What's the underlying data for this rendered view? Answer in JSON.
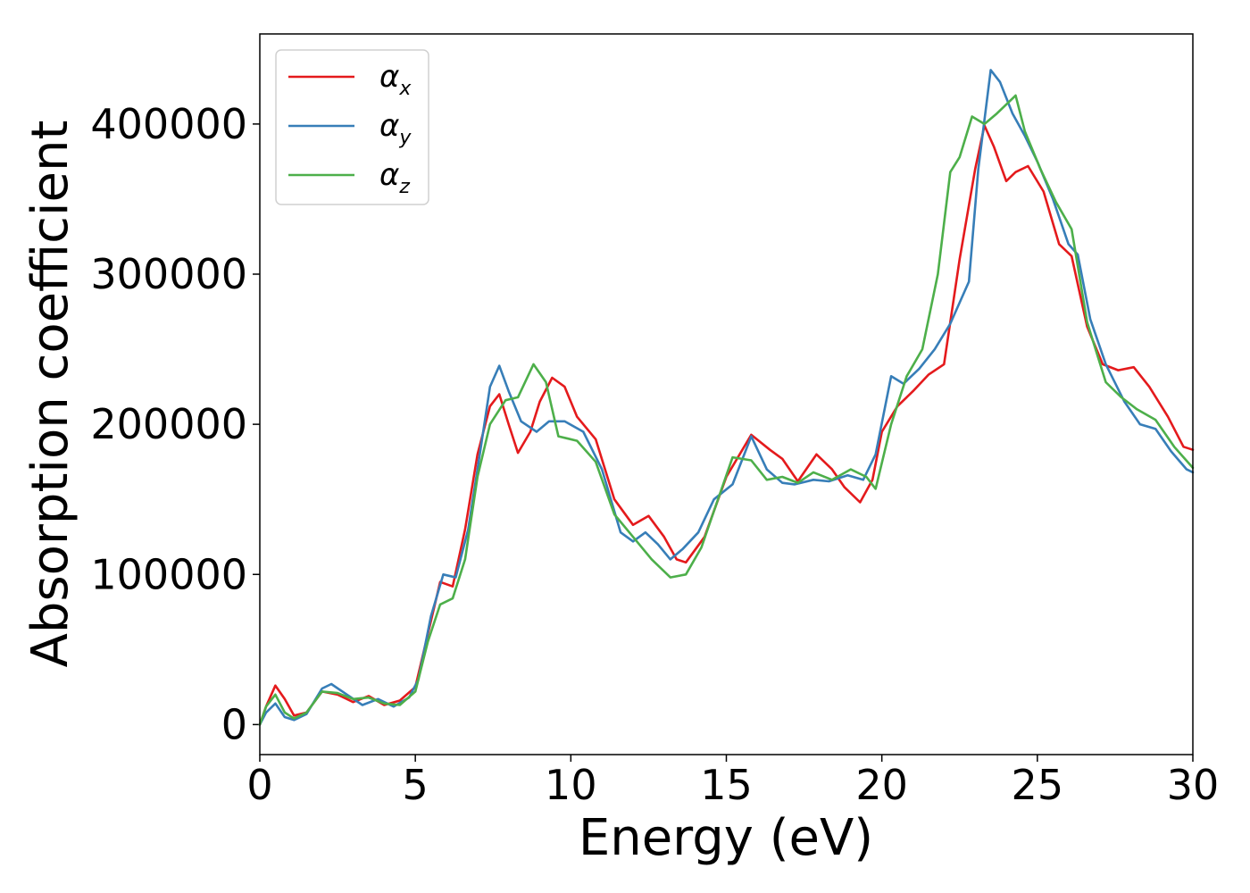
{
  "chart_data": {
    "type": "line",
    "xlabel": "Energy (eV)",
    "ylabel": "Absorption coefficient",
    "xlim": [
      0,
      30
    ],
    "ylim": [
      -20000,
      460000
    ],
    "xticks": [
      0,
      5,
      10,
      15,
      20,
      25,
      30
    ],
    "yticks": [
      0,
      100000,
      200000,
      300000,
      400000
    ],
    "grid": false,
    "legend_position": "top-left",
    "series": [
      {
        "name": "α",
        "sub": "x",
        "color": "#e41a1c",
        "points": [
          [
            0,
            0
          ],
          [
            0.2,
            12000
          ],
          [
            0.5,
            26000
          ],
          [
            0.8,
            17000
          ],
          [
            1.1,
            6000
          ],
          [
            1.5,
            8000
          ],
          [
            2.0,
            22000
          ],
          [
            2.5,
            20000
          ],
          [
            3.0,
            15000
          ],
          [
            3.5,
            19000
          ],
          [
            4.0,
            13000
          ],
          [
            4.5,
            16000
          ],
          [
            5.0,
            25000
          ],
          [
            5.4,
            60000
          ],
          [
            5.8,
            95000
          ],
          [
            6.2,
            92000
          ],
          [
            6.6,
            130000
          ],
          [
            7.0,
            180000
          ],
          [
            7.4,
            212000
          ],
          [
            7.7,
            220000
          ],
          [
            8.0,
            200000
          ],
          [
            8.3,
            181000
          ],
          [
            8.7,
            195000
          ],
          [
            9.0,
            215000
          ],
          [
            9.4,
            231000
          ],
          [
            9.8,
            225000
          ],
          [
            10.2,
            205000
          ],
          [
            10.8,
            190000
          ],
          [
            11.4,
            150000
          ],
          [
            12.0,
            133000
          ],
          [
            12.5,
            139000
          ],
          [
            13.0,
            125000
          ],
          [
            13.4,
            110000
          ],
          [
            13.7,
            108000
          ],
          [
            14.3,
            125000
          ],
          [
            15.0,
            165000
          ],
          [
            15.8,
            193000
          ],
          [
            16.4,
            183000
          ],
          [
            16.8,
            177000
          ],
          [
            17.3,
            162000
          ],
          [
            17.9,
            180000
          ],
          [
            18.4,
            170000
          ],
          [
            18.8,
            158000
          ],
          [
            19.3,
            148000
          ],
          [
            19.7,
            163000
          ],
          [
            20.0,
            195000
          ],
          [
            20.5,
            212000
          ],
          [
            21.0,
            222000
          ],
          [
            21.5,
            233000
          ],
          [
            22.0,
            240000
          ],
          [
            22.5,
            310000
          ],
          [
            23.0,
            370000
          ],
          [
            23.3,
            399000
          ],
          [
            23.6,
            385000
          ],
          [
            24.0,
            362000
          ],
          [
            24.3,
            368000
          ],
          [
            24.7,
            372000
          ],
          [
            25.2,
            355000
          ],
          [
            25.7,
            320000
          ],
          [
            26.1,
            312000
          ],
          [
            26.6,
            265000
          ],
          [
            27.1,
            240000
          ],
          [
            27.6,
            236000
          ],
          [
            28.1,
            238000
          ],
          [
            28.6,
            225000
          ],
          [
            29.2,
            205000
          ],
          [
            29.7,
            185000
          ],
          [
            30,
            183000
          ]
        ]
      },
      {
        "name": "α",
        "sub": "y",
        "color": "#377eb8",
        "points": [
          [
            0,
            0
          ],
          [
            0.2,
            8000
          ],
          [
            0.5,
            14000
          ],
          [
            0.8,
            5000
          ],
          [
            1.1,
            3000
          ],
          [
            1.5,
            7000
          ],
          [
            2.0,
            24000
          ],
          [
            2.3,
            27000
          ],
          [
            2.8,
            20000
          ],
          [
            3.3,
            13000
          ],
          [
            3.8,
            17000
          ],
          [
            4.3,
            12000
          ],
          [
            4.8,
            18000
          ],
          [
            5.1,
            30000
          ],
          [
            5.5,
            72000
          ],
          [
            5.9,
            100000
          ],
          [
            6.3,
            98000
          ],
          [
            6.7,
            130000
          ],
          [
            7.0,
            170000
          ],
          [
            7.4,
            225000
          ],
          [
            7.7,
            239000
          ],
          [
            8.0,
            222000
          ],
          [
            8.4,
            202000
          ],
          [
            8.9,
            195000
          ],
          [
            9.3,
            202000
          ],
          [
            9.8,
            202000
          ],
          [
            10.4,
            195000
          ],
          [
            11.0,
            170000
          ],
          [
            11.6,
            128000
          ],
          [
            12.0,
            122000
          ],
          [
            12.4,
            128000
          ],
          [
            12.8,
            120000
          ],
          [
            13.2,
            110000
          ],
          [
            13.6,
            117000
          ],
          [
            14.1,
            128000
          ],
          [
            14.6,
            150000
          ],
          [
            15.2,
            160000
          ],
          [
            15.8,
            192000
          ],
          [
            16.3,
            170000
          ],
          [
            16.8,
            161000
          ],
          [
            17.2,
            160000
          ],
          [
            17.8,
            163000
          ],
          [
            18.3,
            162000
          ],
          [
            18.9,
            166000
          ],
          [
            19.4,
            163000
          ],
          [
            19.8,
            180000
          ],
          [
            20.3,
            232000
          ],
          [
            20.7,
            227000
          ],
          [
            21.2,
            237000
          ],
          [
            21.7,
            250000
          ],
          [
            22.2,
            267000
          ],
          [
            22.8,
            295000
          ],
          [
            23.1,
            370000
          ],
          [
            23.5,
            436000
          ],
          [
            23.8,
            428000
          ],
          [
            24.2,
            407000
          ],
          [
            24.6,
            392000
          ],
          [
            25.0,
            375000
          ],
          [
            25.5,
            350000
          ],
          [
            26.0,
            320000
          ],
          [
            26.3,
            313000
          ],
          [
            26.7,
            270000
          ],
          [
            27.2,
            240000
          ],
          [
            27.8,
            215000
          ],
          [
            28.3,
            200000
          ],
          [
            28.8,
            197000
          ],
          [
            29.3,
            182000
          ],
          [
            29.8,
            170000
          ],
          [
            30,
            168000
          ]
        ]
      },
      {
        "name": "α",
        "sub": "z",
        "color": "#4daf4a",
        "points": [
          [
            0,
            0
          ],
          [
            0.2,
            12000
          ],
          [
            0.5,
            20000
          ],
          [
            0.8,
            8000
          ],
          [
            1.1,
            4000
          ],
          [
            1.5,
            8000
          ],
          [
            2.0,
            22000
          ],
          [
            2.5,
            21000
          ],
          [
            3.0,
            17000
          ],
          [
            3.5,
            18000
          ],
          [
            4.0,
            14000
          ],
          [
            4.5,
            13000
          ],
          [
            5.0,
            22000
          ],
          [
            5.4,
            55000
          ],
          [
            5.8,
            80000
          ],
          [
            6.2,
            84000
          ],
          [
            6.6,
            110000
          ],
          [
            7.0,
            165000
          ],
          [
            7.4,
            200000
          ],
          [
            7.9,
            216000
          ],
          [
            8.3,
            218000
          ],
          [
            8.8,
            240000
          ],
          [
            9.2,
            228000
          ],
          [
            9.6,
            192000
          ],
          [
            10.2,
            189000
          ],
          [
            10.8,
            175000
          ],
          [
            11.4,
            140000
          ],
          [
            12.0,
            125000
          ],
          [
            12.6,
            110000
          ],
          [
            13.2,
            98000
          ],
          [
            13.7,
            100000
          ],
          [
            14.2,
            118000
          ],
          [
            14.7,
            148000
          ],
          [
            15.2,
            178000
          ],
          [
            15.8,
            176000
          ],
          [
            16.3,
            163000
          ],
          [
            16.8,
            165000
          ],
          [
            17.3,
            161000
          ],
          [
            17.8,
            168000
          ],
          [
            18.4,
            163000
          ],
          [
            19.0,
            170000
          ],
          [
            19.5,
            165000
          ],
          [
            19.8,
            157000
          ],
          [
            20.3,
            200000
          ],
          [
            20.8,
            232000
          ],
          [
            21.3,
            250000
          ],
          [
            21.8,
            300000
          ],
          [
            22.2,
            368000
          ],
          [
            22.5,
            378000
          ],
          [
            22.9,
            405000
          ],
          [
            23.3,
            400000
          ],
          [
            23.7,
            407000
          ],
          [
            24.3,
            419000
          ],
          [
            24.6,
            395000
          ],
          [
            25.1,
            370000
          ],
          [
            25.6,
            348000
          ],
          [
            26.1,
            330000
          ],
          [
            26.6,
            268000
          ],
          [
            27.2,
            228000
          ],
          [
            27.7,
            218000
          ],
          [
            28.2,
            210000
          ],
          [
            28.8,
            203000
          ],
          [
            29.4,
            185000
          ],
          [
            30,
            171000
          ]
        ]
      }
    ]
  }
}
